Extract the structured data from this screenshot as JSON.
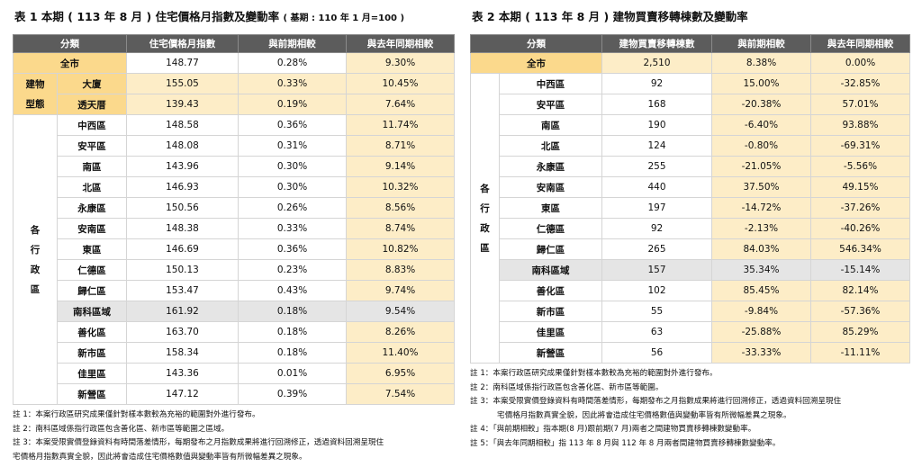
{
  "table1": {
    "title": "表 1 本期 ( 113 年 8 月 ) 住宅價格月指數及變動率",
    "base_note": "( 基期 : 110 年 1 月=100 )",
    "headers": [
      "分類",
      "住宅價格月指數",
      "與前期相較",
      "與去年同期相較"
    ],
    "total": {
      "label": "全市",
      "index": "148.77",
      "mom": "0.28%",
      "yoy": "9.30%"
    },
    "type_group_label": [
      "建物",
      "型態"
    ],
    "type_rows": [
      {
        "name": "大廈",
        "index": "155.05",
        "mom": "0.33%",
        "yoy": "10.45%"
      },
      {
        "name": "透天厝",
        "index": "139.43",
        "mom": "0.19%",
        "yoy": "7.64%"
      }
    ],
    "district_group_label": [
      "各",
      "行",
      "政",
      "區"
    ],
    "district_rows": [
      {
        "name": "中西區",
        "index": "148.58",
        "mom": "0.36%",
        "yoy": "11.74%"
      },
      {
        "name": "安平區",
        "index": "148.08",
        "mom": "0.31%",
        "yoy": "8.71%"
      },
      {
        "name": "南區",
        "index": "143.96",
        "mom": "0.30%",
        "yoy": "9.14%"
      },
      {
        "name": "北區",
        "index": "146.93",
        "mom": "0.30%",
        "yoy": "10.32%"
      },
      {
        "name": "永康區",
        "index": "150.56",
        "mom": "0.26%",
        "yoy": "8.56%"
      },
      {
        "name": "安南區",
        "index": "148.38",
        "mom": "0.33%",
        "yoy": "8.74%"
      },
      {
        "name": "東區",
        "index": "146.69",
        "mom": "0.36%",
        "yoy": "10.82%"
      },
      {
        "name": "仁德區",
        "index": "150.13",
        "mom": "0.23%",
        "yoy": "8.83%"
      },
      {
        "name": "歸仁區",
        "index": "153.47",
        "mom": "0.43%",
        "yoy": "9.74%"
      },
      {
        "name": "南科區域",
        "index": "161.92",
        "mom": "0.18%",
        "yoy": "9.54%"
      },
      {
        "name": "善化區",
        "index": "163.70",
        "mom": "0.18%",
        "yoy": "8.26%"
      },
      {
        "name": "新市區",
        "index": "158.34",
        "mom": "0.18%",
        "yoy": "11.40%"
      },
      {
        "name": "佳里區",
        "index": "143.36",
        "mom": "0.01%",
        "yoy": "6.95%"
      },
      {
        "name": "新營區",
        "index": "147.12",
        "mom": "0.39%",
        "yoy": "7.54%"
      }
    ],
    "notes": [
      "註 1：本案行政區研究成果僅針對樣本數較為充裕的範圍對外進行發布。",
      "註 2：南科區域係指行政區包含善化區、新市區等範圍之區域。",
      "註 3：本案受限實價登錄資料有時間落差情形，每期發布之月指數成果將進行回溯修正，透過資料回溯呈現住",
      "宅價格月指數真實全貌，因此將會造成住宅價格數值與變動率皆有所微幅差異之現象。"
    ]
  },
  "table2": {
    "title": "表 2 本期 ( 113 年 8 月 ) 建物買賣移轉棟數及變動率",
    "headers": [
      "分類",
      "建物買賣移轉棟數",
      "與前期相較",
      "與去年同期相較"
    ],
    "total": {
      "label": "全市",
      "count": "2,510",
      "mom": "8.38%",
      "yoy": "0.00%"
    },
    "district_group_label": [
      "各",
      "行",
      "政",
      "區"
    ],
    "district_rows": [
      {
        "name": "中西區",
        "count": "92",
        "mom": "15.00%",
        "yoy": "-32.85%"
      },
      {
        "name": "安平區",
        "count": "168",
        "mom": "-20.38%",
        "yoy": "57.01%"
      },
      {
        "name": "南區",
        "count": "190",
        "mom": "-6.40%",
        "yoy": "93.88%"
      },
      {
        "name": "北區",
        "count": "124",
        "mom": "-0.80%",
        "yoy": "-69.31%"
      },
      {
        "name": "永康區",
        "count": "255",
        "mom": "-21.05%",
        "yoy": "-5.56%"
      },
      {
        "name": "安南區",
        "count": "440",
        "mom": "37.50%",
        "yoy": "49.15%"
      },
      {
        "name": "東區",
        "count": "197",
        "mom": "-14.72%",
        "yoy": "-37.26%"
      },
      {
        "name": "仁德區",
        "count": "92",
        "mom": "-2.13%",
        "yoy": "-40.26%"
      },
      {
        "name": "歸仁區",
        "count": "265",
        "mom": "84.03%",
        "yoy": "546.34%"
      },
      {
        "name": "南科區域",
        "count": "157",
        "mom": "35.34%",
        "yoy": "-15.14%"
      },
      {
        "name": "善化區",
        "count": "102",
        "mom": "85.45%",
        "yoy": "82.14%"
      },
      {
        "name": "新市區",
        "count": "55",
        "mom": "-9.84%",
        "yoy": "-57.36%"
      },
      {
        "name": "佳里區",
        "count": "63",
        "mom": "-25.88%",
        "yoy": "85.29%"
      },
      {
        "name": "新營區",
        "count": "56",
        "mom": "-33.33%",
        "yoy": "-11.11%"
      }
    ],
    "notes": [
      "註 1：本案行政區研究成果僅針對樣本數較為充裕的範圍對外進行發布。",
      "註 2：南科區域係指行政區包含善化區、新市區等範圍。",
      "註 3：本案受限實價登錄資料有時間落差情形，每期發布之月指數成果將進行回溯修正，透過資料回溯呈現住",
      "宅價格月指數真實全貌，因此將會造成住宅價格數值與變動率皆有所微幅差異之現象。",
      "註 4：「與前期相較」指本期(8 月)跟前期(7 月)兩者之間建物買賣移轉棟數變動率。",
      "註 5：「與去年同期相較」指 113 年 8 月與 112 年 8 月兩者間建物買賣移轉棟數變動率。"
    ]
  }
}
